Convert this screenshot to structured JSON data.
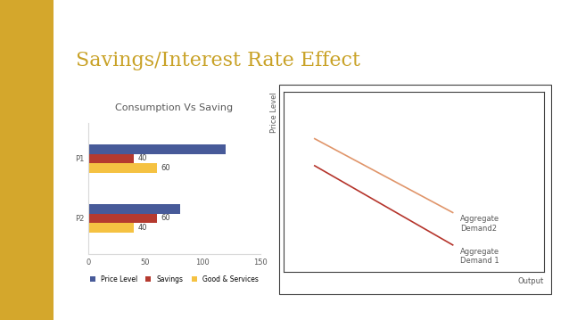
{
  "slide_title": "Savings/Interest Rate Effect",
  "chart_data": [
    {
      "type": "bar",
      "title": "Consumption Vs Saving",
      "orientation": "horizontal",
      "categories": [
        "P2",
        "P1"
      ],
      "series": [
        {
          "name": "Price Level",
          "color": "#475a99",
          "values": [
            80,
            120
          ],
          "data_labels": false
        },
        {
          "name": "Savings",
          "color": "#b53a2f",
          "values": [
            60,
            40
          ],
          "data_labels": true
        },
        {
          "name": "Good & Services",
          "color": "#f5c242",
          "values": [
            40,
            60
          ],
          "data_labels": true
        }
      ],
      "xlim": [
        0,
        150
      ],
      "xticks": [
        0,
        50,
        100,
        150
      ],
      "grid": false,
      "legend": "lower center"
    },
    {
      "type": "line",
      "x_label": "Output",
      "y_label": "Price Level",
      "xlim": [
        0,
        10
      ],
      "ylim": [
        0,
        10
      ],
      "xticks": [],
      "yticks": [],
      "tick_labels": false,
      "grid": false,
      "series": [
        {
          "name": "Aggregate Demand2",
          "color": "#e0956a",
          "x": [
            1.2,
            6.5
          ],
          "values": [
            7.4,
            3.3
          ]
        },
        {
          "name": "Aggregate Demand 1",
          "color": "#b5342b",
          "x": [
            1.2,
            6.5
          ],
          "values": [
            5.9,
            1.5
          ]
        }
      ]
    }
  ]
}
